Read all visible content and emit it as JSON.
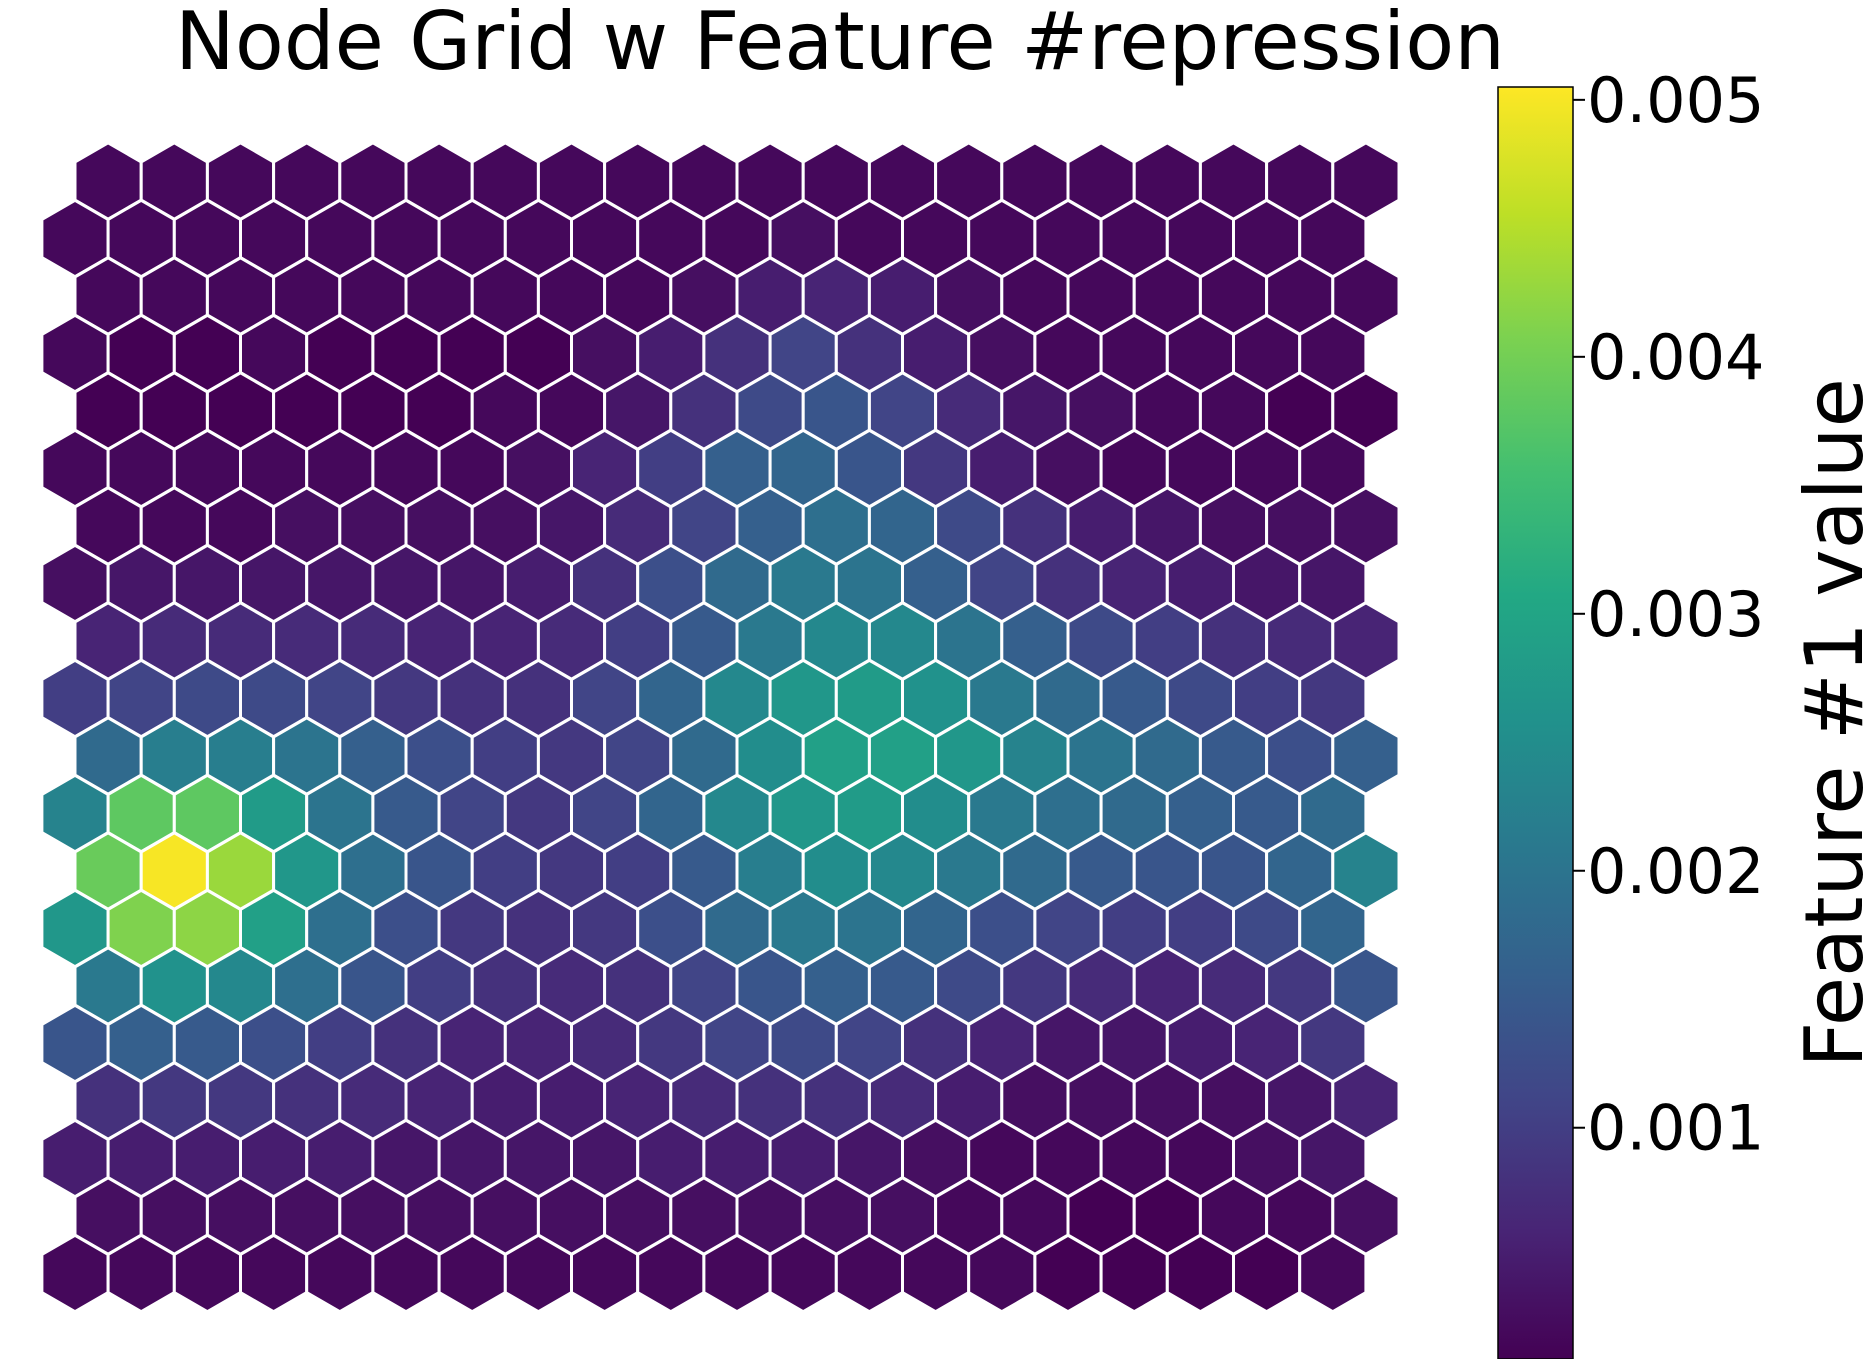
{
  "chart_data": {
    "type": "heatmap",
    "layout": "hexagonal",
    "title": "Node Grid w Feature #repression",
    "colorbar": {
      "label": "Feature #1 value",
      "colormap": "viridis",
      "range": [
        0.0001,
        0.00505
      ],
      "ticks": [
        0.001,
        0.002,
        0.003,
        0.004,
        0.005
      ],
      "tick_labels": [
        "0.001",
        "0.002",
        "0.003",
        "0.004",
        "0.005"
      ]
    },
    "grid": {
      "columns": 20,
      "rows": 20,
      "odd_row_offset": "right",
      "row_order": "top-to-bottom"
    },
    "values": [
      [
        0.0002,
        0.0002,
        0.0002,
        0.0002,
        0.0002,
        0.0002,
        0.0002,
        0.0002,
        0.0002,
        0.0002,
        0.0002,
        0.0002,
        0.0002,
        0.0002,
        0.0002,
        0.0002,
        0.0002,
        0.0002,
        0.0002,
        0.0002
      ],
      [
        0.0002,
        0.0002,
        0.0002,
        0.0002,
        0.0002,
        0.0002,
        0.0002,
        0.0002,
        0.0002,
        0.0002,
        0.0002,
        0.0003,
        0.0002,
        0.0002,
        0.0002,
        0.0002,
        0.0002,
        0.0002,
        0.0002,
        0.0002
      ],
      [
        0.0002,
        0.0002,
        0.0002,
        0.0002,
        0.0002,
        0.0002,
        0.0002,
        0.0002,
        0.0002,
        0.0003,
        0.0005,
        0.0006,
        0.0005,
        0.0003,
        0.0002,
        0.0002,
        0.0002,
        0.0002,
        0.0002,
        0.0002
      ],
      [
        0.0002,
        0.0001,
        0.0001,
        0.0002,
        0.0001,
        0.0001,
        0.0001,
        0.0001,
        0.0003,
        0.0005,
        0.0008,
        0.0011,
        0.0008,
        0.0005,
        0.0003,
        0.0002,
        0.0002,
        0.0002,
        0.0002,
        0.0002
      ],
      [
        0.0001,
        0.0001,
        0.0001,
        0.0001,
        0.0001,
        0.0001,
        0.0002,
        0.0002,
        0.0004,
        0.0008,
        0.0012,
        0.0014,
        0.0011,
        0.0007,
        0.0004,
        0.0003,
        0.0002,
        0.0002,
        0.0001,
        0.0001
      ],
      [
        0.0002,
        0.0002,
        0.0002,
        0.0002,
        0.0002,
        0.0002,
        0.0002,
        0.0003,
        0.0006,
        0.001,
        0.0016,
        0.0017,
        0.0014,
        0.0009,
        0.0005,
        0.0003,
        0.0002,
        0.0002,
        0.0002,
        0.0002
      ],
      [
        0.0002,
        0.0002,
        0.0002,
        0.0003,
        0.0003,
        0.0003,
        0.0003,
        0.0004,
        0.0007,
        0.0011,
        0.0016,
        0.0019,
        0.0017,
        0.0012,
        0.0008,
        0.0005,
        0.0004,
        0.0003,
        0.0003,
        0.0003
      ],
      [
        0.0003,
        0.0004,
        0.0004,
        0.0004,
        0.0004,
        0.0004,
        0.0004,
        0.0005,
        0.0008,
        0.0013,
        0.0018,
        0.0021,
        0.002,
        0.0016,
        0.0011,
        0.0008,
        0.0006,
        0.0005,
        0.0004,
        0.0004
      ],
      [
        0.0006,
        0.0007,
        0.0007,
        0.0007,
        0.0007,
        0.0006,
        0.0006,
        0.0007,
        0.001,
        0.0015,
        0.0021,
        0.0024,
        0.0024,
        0.002,
        0.0016,
        0.0012,
        0.001,
        0.0008,
        0.0007,
        0.0006
      ],
      [
        0.001,
        0.0011,
        0.0012,
        0.0012,
        0.0011,
        0.0009,
        0.0008,
        0.0008,
        0.0011,
        0.0017,
        0.0024,
        0.0027,
        0.0028,
        0.0026,
        0.0021,
        0.0018,
        0.0015,
        0.0012,
        0.001,
        0.0009
      ],
      [
        0.0018,
        0.0022,
        0.0022,
        0.002,
        0.0016,
        0.0013,
        0.001,
        0.0009,
        0.0011,
        0.0018,
        0.0025,
        0.0029,
        0.0029,
        0.0027,
        0.0023,
        0.002,
        0.0018,
        0.0015,
        0.0013,
        0.0016
      ],
      [
        0.0023,
        0.0038,
        0.0038,
        0.0028,
        0.002,
        0.0015,
        0.0011,
        0.0009,
        0.0011,
        0.0017,
        0.0024,
        0.0027,
        0.0028,
        0.0025,
        0.0021,
        0.0019,
        0.0018,
        0.0016,
        0.0015,
        0.0018
      ],
      [
        0.0039,
        0.005,
        0.0043,
        0.0027,
        0.0019,
        0.0014,
        0.001,
        0.0009,
        0.001,
        0.0015,
        0.0022,
        0.0025,
        0.0024,
        0.0021,
        0.0018,
        0.0015,
        0.0014,
        0.0014,
        0.0017,
        0.0023
      ],
      [
        0.0027,
        0.0041,
        0.0042,
        0.0029,
        0.0019,
        0.0013,
        0.0009,
        0.0008,
        0.0009,
        0.0013,
        0.0018,
        0.0021,
        0.002,
        0.0017,
        0.0013,
        0.0011,
        0.001,
        0.001,
        0.0012,
        0.0017
      ],
      [
        0.0021,
        0.0026,
        0.0024,
        0.0019,
        0.0014,
        0.001,
        0.0008,
        0.0007,
        0.0008,
        0.0011,
        0.0014,
        0.0016,
        0.0015,
        0.0012,
        0.0009,
        0.0007,
        0.0006,
        0.0007,
        0.0009,
        0.0014
      ],
      [
        0.0014,
        0.0016,
        0.0015,
        0.0013,
        0.001,
        0.0008,
        0.0006,
        0.0006,
        0.0007,
        0.0009,
        0.0011,
        0.0012,
        0.0011,
        0.0008,
        0.0006,
        0.0004,
        0.0004,
        0.0005,
        0.0006,
        0.0009
      ],
      [
        0.0008,
        0.0009,
        0.0009,
        0.0008,
        0.0007,
        0.0006,
        0.0005,
        0.0005,
        0.0006,
        0.0007,
        0.0008,
        0.0008,
        0.0007,
        0.0005,
        0.0003,
        0.0003,
        0.0003,
        0.0003,
        0.0004,
        0.0006
      ],
      [
        0.0005,
        0.0005,
        0.0005,
        0.0005,
        0.0005,
        0.0004,
        0.0004,
        0.0004,
        0.0004,
        0.0005,
        0.0005,
        0.0005,
        0.0004,
        0.0003,
        0.0002,
        0.0002,
        0.0002,
        0.0002,
        0.0003,
        0.0004
      ],
      [
        0.0003,
        0.0003,
        0.0003,
        0.0003,
        0.0003,
        0.0003,
        0.0003,
        0.0003,
        0.0003,
        0.0003,
        0.0003,
        0.0003,
        0.0003,
        0.0002,
        0.0002,
        0.0001,
        0.0001,
        0.0002,
        0.0002,
        0.0003
      ],
      [
        0.0002,
        0.0002,
        0.0002,
        0.0002,
        0.0002,
        0.0002,
        0.0002,
        0.0002,
        0.0002,
        0.0002,
        0.0002,
        0.0002,
        0.0002,
        0.0002,
        0.0002,
        0.0001,
        0.0001,
        0.0001,
        0.0001,
        0.0002
      ]
    ]
  }
}
